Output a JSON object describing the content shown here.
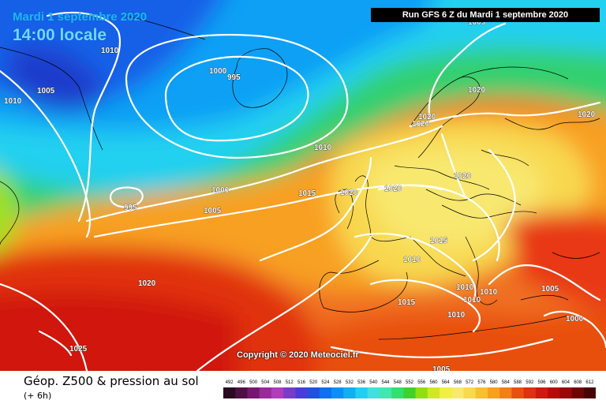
{
  "map": {
    "date_label": "Mardi 1 septembre 2020",
    "time_label": "14:00 locale",
    "run_label": "Run GFS 6 Z du Mardi 1 septembre 2020",
    "copyright": "Copyright © 2020 Meteociel.fr",
    "variable_title": "Géop. Z500 & pression au sol",
    "lead_time": "(+ 6h)",
    "pressure_labels": [
      "1010",
      "1005",
      "1010",
      "1000",
      "995",
      "1005",
      "1020",
      "1020",
      "1020",
      "1010",
      "1020",
      "1015",
      "1020",
      "1020",
      "1000",
      "1005",
      "995",
      "1015",
      "1010",
      "1020",
      "1010",
      "1010",
      "1015",
      "1010",
      "1005",
      "1000",
      "1010",
      "1005",
      "1025",
      "1020"
    ],
    "legend_values": [
      "492",
      "496",
      "500",
      "504",
      "508",
      "512",
      "516",
      "520",
      "524",
      "528",
      "532",
      "536",
      "540",
      "544",
      "548",
      "552",
      "556",
      "560",
      "564",
      "568",
      "572",
      "576",
      "580",
      "584",
      "588",
      "592",
      "596",
      "600",
      "604",
      "608",
      "612"
    ],
    "legend_colors": [
      "#2a0a20",
      "#4e0f45",
      "#761870",
      "#9a2a9a",
      "#b03cb8",
      "#7a3cc8",
      "#4a3cd8",
      "#2050e0",
      "#1070f0",
      "#0a90f5",
      "#10b0f0",
      "#20d0f0",
      "#40e0e0",
      "#40e8b0",
      "#30e070",
      "#40d030",
      "#90e010",
      "#d0e820",
      "#f0f040",
      "#f8e870",
      "#f8d850",
      "#f8c030",
      "#f8a020",
      "#f08018",
      "#e85010",
      "#e03010",
      "#d01810",
      "#b80a0a",
      "#980808",
      "#700404",
      "#480202"
    ]
  }
}
